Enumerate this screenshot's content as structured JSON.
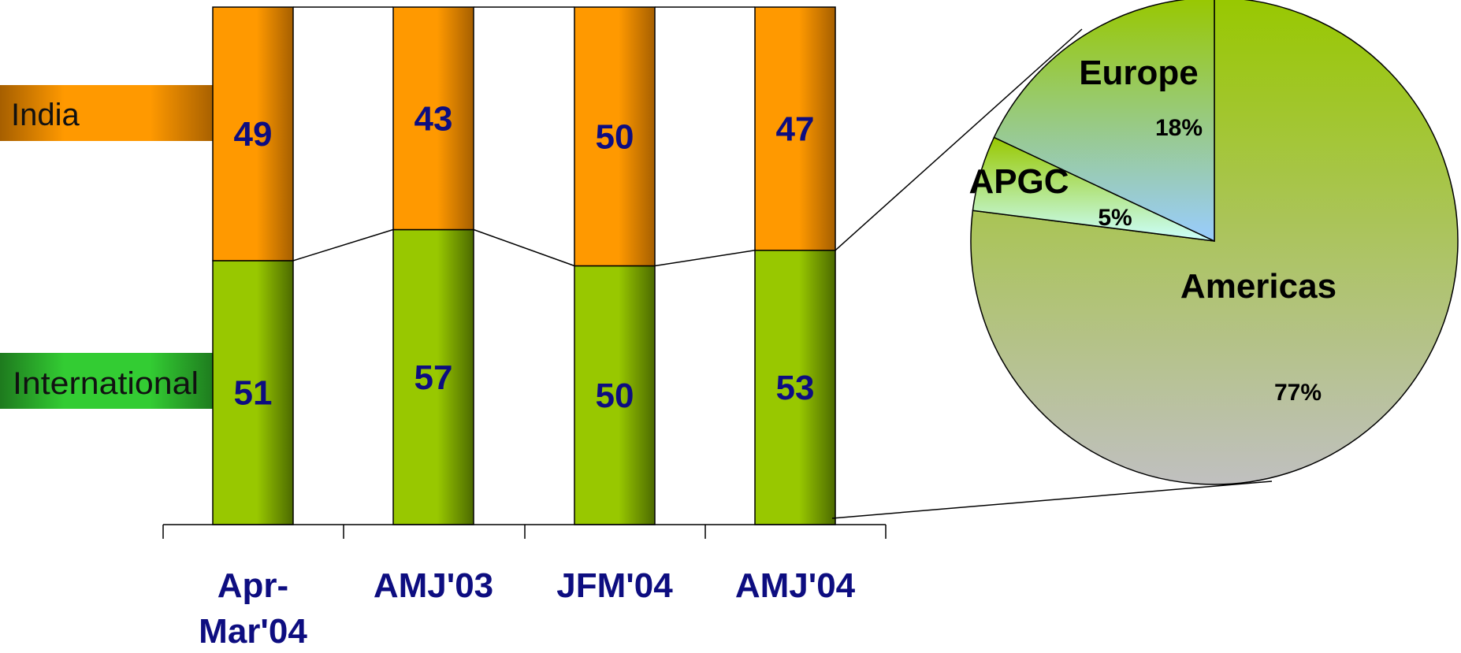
{
  "chart_data": [
    {
      "type": "bar",
      "stacked": true,
      "categories": [
        "Apr-Mar'04",
        "AMJ'03",
        "JFM'04",
        "AMJ'04"
      ],
      "series": [
        {
          "name": "International",
          "values": [
            51,
            57,
            50,
            53
          ],
          "color": "#98c800"
        },
        {
          "name": "India",
          "values": [
            49,
            43,
            50,
            47
          ],
          "color": "#ff9900"
        }
      ],
      "ylim": [
        0,
        100
      ],
      "grid": false,
      "legend_position": "left",
      "series_connector_lines": true
    },
    {
      "type": "pie",
      "slices": [
        {
          "name": "Americas",
          "value": 77,
          "label": "77%"
        },
        {
          "name": "APGC",
          "value": 5,
          "label": "5%"
        },
        {
          "name": "Europe",
          "value": 18,
          "label": "18%"
        }
      ],
      "breakout_of": {
        "series": "International",
        "category": "AMJ'04"
      }
    }
  ],
  "colors": {
    "international": "#98c800",
    "india": "#ff9900",
    "text": "#0d0d80",
    "europe": "#99ccff",
    "apgc": "#ccffff",
    "americas": "#c0c0c0"
  }
}
